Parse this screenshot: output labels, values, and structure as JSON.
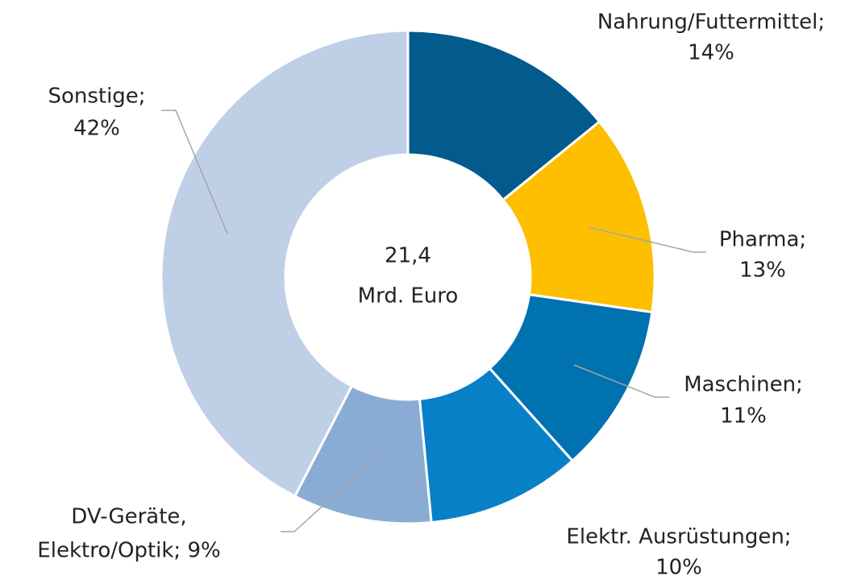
{
  "chart_data": {
    "type": "donut",
    "center_label": [
      "21,4",
      "Mrd. Euro"
    ],
    "values": [
      14,
      13,
      11,
      10,
      9,
      42
    ],
    "value_labels": [
      [
        "Nahrung/Futtermittel;",
        "14%"
      ],
      [
        "Pharma;",
        "13%"
      ],
      [
        "Maschinen;",
        "11%"
      ],
      [
        "Elektr. Ausrüstungen;",
        "10%"
      ],
      [
        "DV-Geräte,",
        "Elektro/Optik; 9%"
      ],
      [
        "Sonstige;",
        "42%"
      ]
    ],
    "colors": [
      "#035a8c",
      "#fdbf00",
      "#0072b0",
      "#0880c8",
      "#8aacd4",
      "#bfcfe6"
    ]
  }
}
